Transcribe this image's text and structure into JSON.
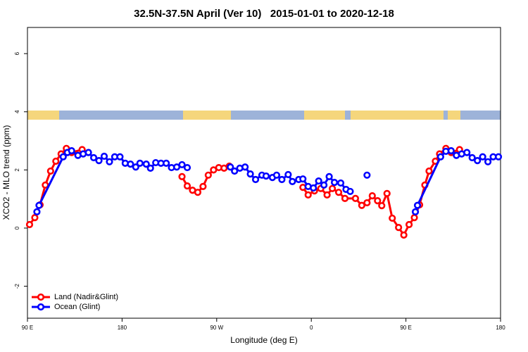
{
  "chart_data": {
    "type": "line",
    "title": "32.5N-37.5N April (Ver 10)   2015-01-01 to 2020-12-18",
    "x_label": "Longitude (deg E)",
    "y_label": "XCO2 - MLO trend (ppm)",
    "xlim": [
      90,
      540
    ],
    "ylim": [
      -3.1,
      6.9
    ],
    "xticks": [
      {
        "value": 90,
        "label": "90 E"
      },
      180,
      {
        "value": 270,
        "label": "90 W"
      },
      {
        "value": 360,
        "label": "0"
      },
      {
        "value": 450,
        "label": "90 E"
      },
      {
        "value": 540,
        "label": "180"
      }
    ],
    "yticks": [
      -2,
      0,
      2,
      4,
      6
    ],
    "legend": "bottom-left",
    "series": [
      {
        "name": "Land (Nadir&Glint)",
        "color": "#ff0000",
        "x": [
          92,
          97,
          102,
          107,
          112,
          117,
          122,
          127,
          132,
          142,
          null,
          237,
          242,
          247,
          252,
          257,
          262,
          267,
          272,
          277,
          282,
          null,
          352,
          357,
          363,
          369,
          375,
          380,
          386,
          392,
          402,
          408,
          413,
          418,
          423,
          427,
          432,
          437,
          443,
          448,
          453,
          458,
          463,
          468,
          472,
          478,
          482,
          488,
          493,
          501
        ],
        "values": [
          0.12,
          0.36,
          0.8,
          1.48,
          1.96,
          2.3,
          2.55,
          2.74,
          2.6,
          2.7,
          null,
          1.77,
          1.45,
          1.3,
          1.23,
          1.43,
          1.82,
          2.0,
          2.08,
          2.06,
          2.13,
          null,
          1.4,
          1.14,
          1.28,
          1.36,
          1.14,
          1.36,
          1.23,
          1.02,
          1.02,
          0.78,
          0.87,
          1.11,
          0.94,
          0.77,
          1.19,
          0.34,
          0.02,
          -0.24,
          0.12,
          0.36,
          0.8,
          1.48,
          1.96,
          2.3,
          2.55,
          2.74,
          2.6,
          2.7
        ]
      },
      {
        "name": "Ocean (Glint)",
        "color": "#0000ff",
        "x": [
          99,
          101,
          124,
          128,
          132,
          138,
          143,
          148,
          153,
          158,
          163,
          168,
          173,
          178,
          183,
          188,
          193,
          197,
          203,
          207,
          212,
          217,
          222,
          227,
          232,
          237,
          242,
          null,
          283,
          287,
          292,
          297,
          302,
          307,
          313,
          317,
          323,
          327,
          332,
          338,
          342,
          348,
          352,
          357,
          362,
          367,
          372,
          377,
          382,
          388,
          393,
          397,
          null,
          413,
          null,
          459,
          461,
          483,
          488,
          493,
          498,
          503,
          508,
          513,
          518,
          523,
          528,
          533,
          538
        ],
        "values": [
          0.56,
          0.78,
          2.45,
          2.6,
          2.66,
          2.5,
          2.55,
          2.6,
          2.42,
          2.32,
          2.47,
          2.28,
          2.45,
          2.45,
          2.23,
          2.2,
          2.1,
          2.23,
          2.2,
          2.06,
          2.25,
          2.23,
          2.23,
          2.08,
          2.1,
          2.18,
          2.08,
          null,
          2.1,
          1.96,
          2.06,
          2.1,
          1.86,
          1.67,
          1.82,
          1.79,
          1.74,
          1.82,
          1.67,
          1.84,
          1.6,
          1.67,
          1.69,
          1.43,
          1.38,
          1.62,
          1.48,
          1.77,
          1.57,
          1.55,
          1.33,
          1.26,
          null,
          1.82,
          null,
          0.56,
          0.78,
          2.45,
          2.64,
          2.66,
          2.5,
          2.55,
          2.6,
          2.42,
          2.32,
          2.45,
          2.28,
          2.45,
          2.45
        ]
      }
    ]
  }
}
